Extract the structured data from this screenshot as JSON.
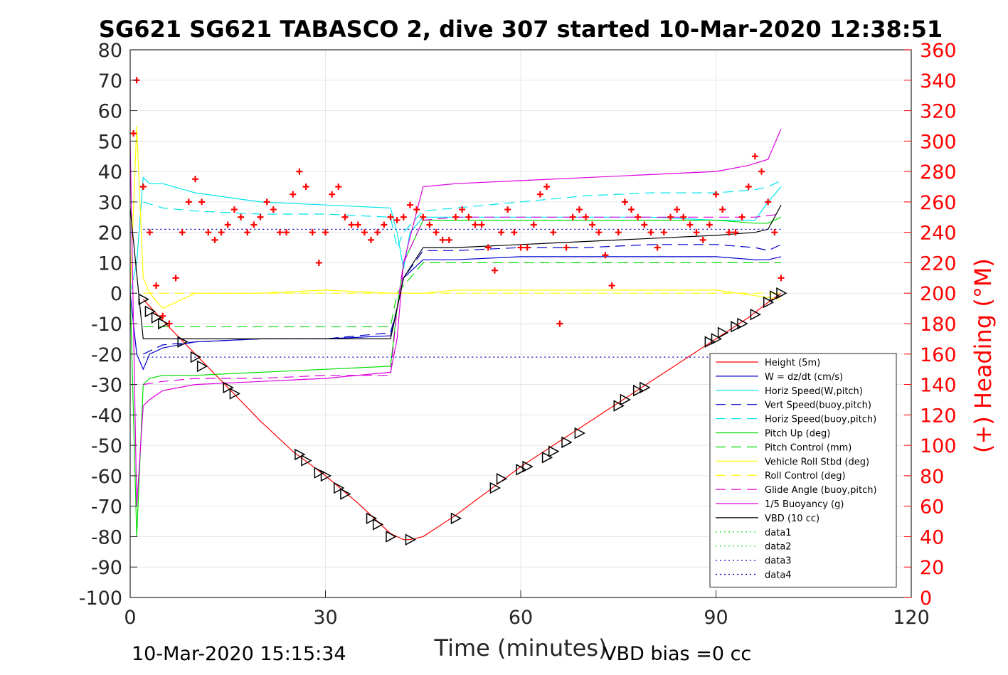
{
  "chart_data": {
    "type": "line",
    "title": "SG621 SG621 TABASCO 2, dive 307 started 10-Mar-2020 12:38:51",
    "xlabel": "Time (minutes)",
    "ylabel": "",
    "y2label": "(+) Heading (°M)",
    "xlim": [
      0,
      120
    ],
    "ylim": [
      -100,
      80
    ],
    "y2lim": [
      0,
      360
    ],
    "xticks": [
      "0",
      "30",
      "60",
      "90",
      "120"
    ],
    "yticks": [
      "80",
      "70",
      "60",
      "50",
      "40",
      "30",
      "20",
      "10",
      "0",
      "-10",
      "-20",
      "-30",
      "-40",
      "-50",
      "-60",
      "-70",
      "-80",
      "-90",
      "-100"
    ],
    "y2ticks": [
      "360",
      "340",
      "320",
      "300",
      "280",
      "260",
      "240",
      "220",
      "200",
      "180",
      "160",
      "140",
      "120",
      "100",
      "80",
      "60",
      "40",
      "20",
      "0"
    ],
    "grid": true,
    "legend_position": "lower-right",
    "footer_left": "10-Mar-2020 15:15:34",
    "footer_right": "VBD bias =0 cc",
    "series": [
      {
        "name": "Height (5m)",
        "color": "#ff0000",
        "style": "solid",
        "x": [
          2,
          5,
          10,
          15,
          20,
          25,
          30,
          35,
          38,
          40,
          42,
          43,
          45,
          50,
          55,
          60,
          65,
          70,
          75,
          80,
          85,
          90,
          95,
          98,
          100
        ],
        "y": [
          -2,
          -9,
          -20,
          -31,
          -42,
          -52,
          -60,
          -69,
          -75,
          -79,
          -81,
          -81,
          -80,
          -73,
          -65,
          -57,
          -50,
          -43,
          -36,
          -29,
          -22,
          -15,
          -8,
          -3,
          0
        ]
      },
      {
        "name": "W = dz/dt (cm/s)",
        "color": "#0000cd",
        "style": "solid",
        "x": [
          0,
          1,
          2,
          3,
          5,
          10,
          20,
          30,
          40,
          41,
          42,
          45,
          50,
          60,
          70,
          80,
          90,
          96,
          98,
          100
        ],
        "y": [
          0,
          -20,
          -25,
          -20,
          -18,
          -16,
          -15,
          -15,
          -14,
          -5,
          5,
          11,
          11,
          12,
          12,
          12,
          12,
          11,
          11,
          12
        ]
      },
      {
        "name": "Horiz Speed(W,pitch)",
        "color": "#00e5ee",
        "style": "solid",
        "x": [
          0,
          1,
          2,
          3,
          5,
          10,
          20,
          30,
          40,
          41,
          42,
          43,
          45,
          50,
          60,
          70,
          80,
          90,
          96,
          98,
          100
        ],
        "y": [
          0,
          10,
          38,
          36,
          36,
          33,
          30,
          29,
          28,
          20,
          8,
          20,
          25,
          25,
          25,
          25,
          25,
          24,
          24,
          30,
          35
        ]
      },
      {
        "name": "Vert Speed(buoy,pitch)",
        "color": "#0000cd",
        "style": "dashed",
        "x": [
          2,
          5,
          10,
          20,
          30,
          40,
          41,
          42,
          45,
          50,
          60,
          70,
          80,
          90,
          96,
          98,
          100
        ],
        "y": [
          -20,
          -17,
          -16,
          -15,
          -15,
          -13,
          -5,
          5,
          14,
          14,
          15,
          15,
          16,
          16,
          15,
          14,
          16
        ]
      },
      {
        "name": "Horiz Speed(buoy,pitch)",
        "color": "#00e5ee",
        "style": "dashed",
        "x": [
          2,
          5,
          10,
          20,
          30,
          40,
          41,
          42,
          45,
          50,
          60,
          70,
          80,
          90,
          96,
          98,
          100
        ],
        "y": [
          30,
          28,
          27,
          26,
          26,
          25,
          15,
          20,
          27,
          28,
          30,
          32,
          33,
          33,
          34,
          35,
          37
        ]
      },
      {
        "name": "Pitch Up (deg)",
        "color": "#00dd00",
        "style": "solid",
        "x": [
          0,
          1,
          2,
          3,
          5,
          10,
          20,
          30,
          40,
          41,
          42,
          45,
          50,
          60,
          70,
          80,
          90,
          96,
          98,
          100
        ],
        "y": [
          0,
          -80,
          -30,
          -28,
          -27,
          -27,
          -26,
          -25,
          -24,
          -5,
          10,
          24,
          24,
          24,
          24,
          24,
          24,
          23,
          23,
          25
        ]
      },
      {
        "name": "Pitch Control (mm)",
        "color": "#00dd00",
        "style": "dashed",
        "x": [
          2,
          40,
          41,
          45,
          100
        ],
        "y": [
          -11,
          -11,
          0,
          10,
          10
        ]
      },
      {
        "name": "Vehicle Roll Stbd (deg)",
        "color": "#ffff00",
        "style": "solid",
        "x": [
          0,
          1,
          2,
          3,
          5,
          10,
          20,
          30,
          40,
          45,
          50,
          60,
          70,
          80,
          90,
          100
        ],
        "y": [
          0,
          55,
          5,
          0,
          -5,
          0,
          0,
          1,
          0,
          0,
          1,
          1,
          1,
          1,
          1,
          -2
        ]
      },
      {
        "name": "Roll Control (deg)",
        "color": "#ffff00",
        "style": "dashed",
        "x": [
          2,
          100
        ],
        "y": [
          0,
          0
        ]
      },
      {
        "name": "Glide Angle (buoy,pitch)",
        "color": "#dd00dd",
        "style": "dashed",
        "x": [
          2,
          5,
          10,
          20,
          30,
          40,
          41,
          42,
          45,
          50,
          60,
          70,
          80,
          90,
          96,
          100
        ],
        "y": [
          -30,
          -29,
          -28,
          -28,
          -27,
          -27,
          -5,
          10,
          24,
          25,
          25,
          25,
          25,
          25,
          25,
          26
        ]
      },
      {
        "name": "1/5 Buoyancy (g)",
        "color": "#dd00dd",
        "style": "solid",
        "x": [
          0,
          1,
          2,
          3,
          5,
          10,
          20,
          30,
          40,
          41,
          42,
          45,
          50,
          60,
          70,
          80,
          90,
          95,
          98,
          100
        ],
        "y": [
          50,
          -70,
          -37,
          -35,
          -32,
          -30,
          -29,
          -28,
          -26,
          -15,
          10,
          35,
          36,
          37,
          38,
          39,
          40,
          42,
          44,
          54
        ]
      },
      {
        "name": "VBD (10 cc)",
        "color": "#000000",
        "style": "solid",
        "x": [
          0,
          2,
          10,
          20,
          30,
          40,
          41,
          42,
          45,
          50,
          60,
          70,
          80,
          90,
          96,
          98,
          100
        ],
        "y": [
          28,
          -15,
          -15,
          -15,
          -15,
          -15,
          -5,
          5,
          15,
          15,
          16,
          17,
          18,
          19,
          20,
          21,
          29
        ]
      },
      {
        "name": "data1",
        "color": "#00dd00",
        "style": "dotted",
        "x": [],
        "y": []
      },
      {
        "name": "data2",
        "color": "#00dd00",
        "style": "dotted",
        "x": [],
        "y": []
      },
      {
        "name": "data3",
        "color": "#0000cd",
        "style": "dotted",
        "x": [
          2,
          100
        ],
        "y": [
          21,
          21
        ]
      },
      {
        "name": "data4",
        "color": "#0000cd",
        "style": "dotted",
        "x": [
          2,
          100
        ],
        "y": [
          -21,
          -21
        ]
      }
    ],
    "heading": {
      "name": "Heading",
      "color": "#ff0000",
      "marker": "+",
      "x": [
        0.5,
        1,
        2,
        3,
        4,
        5,
        6,
        7,
        8,
        9,
        10,
        11,
        12,
        13,
        14,
        15,
        16,
        17,
        18,
        19,
        20,
        21,
        22,
        23,
        24,
        25,
        26,
        27,
        28,
        29,
        30,
        31,
        32,
        33,
        34,
        35,
        36,
        37,
        38,
        39,
        40,
        41,
        42,
        43,
        44,
        45,
        46,
        47,
        48,
        49,
        50,
        51,
        52,
        53,
        54,
        55,
        56,
        57,
        58,
        59,
        60,
        61,
        62,
        63,
        64,
        65,
        66,
        67,
        68,
        69,
        70,
        71,
        72,
        73,
        74,
        75,
        76,
        77,
        78,
        79,
        80,
        81,
        82,
        83,
        84,
        85,
        86,
        87,
        88,
        89,
        90,
        91,
        92,
        93,
        94,
        95,
        96,
        97,
        98,
        99,
        100
      ],
      "y": [
        305,
        340,
        270,
        240,
        205,
        185,
        180,
        210,
        240,
        260,
        275,
        260,
        240,
        235,
        240,
        245,
        255,
        250,
        240,
        245,
        250,
        260,
        255,
        240,
        240,
        265,
        280,
        270,
        240,
        220,
        240,
        265,
        270,
        250,
        245,
        245,
        240,
        235,
        240,
        245,
        250,
        248,
        250,
        258,
        255,
        250,
        245,
        240,
        235,
        235,
        250,
        255,
        250,
        245,
        245,
        230,
        215,
        240,
        255,
        240,
        230,
        230,
        245,
        265,
        270,
        240,
        180,
        230,
        250,
        255,
        250,
        245,
        240,
        225,
        205,
        240,
        260,
        255,
        250,
        245,
        240,
        230,
        240,
        250,
        255,
        250,
        245,
        240,
        235,
        245,
        265,
        255,
        240,
        240,
        250,
        270,
        290,
        280,
        260,
        240,
        210
      ]
    },
    "triangles": {
      "name": "triangles",
      "color": "#000000",
      "marker": "triangle-right",
      "x": [
        2,
        3,
        4,
        5,
        8,
        10,
        11,
        15,
        16,
        26,
        27,
        29,
        30,
        32,
        33,
        37,
        38,
        40,
        43,
        50,
        56,
        57,
        60,
        61,
        64,
        65,
        67,
        69,
        75,
        76,
        78,
        79,
        89,
        90,
        91,
        93,
        94,
        96,
        98,
        99,
        100
      ],
      "y": [
        -2,
        -6,
        -8,
        -10,
        -16,
        -21,
        -24,
        -31,
        -33,
        -53,
        -55,
        -59,
        -60,
        -64,
        -66,
        -74,
        -76,
        -80,
        -81,
        -74,
        -64,
        -61,
        -58,
        -57,
        -54,
        -52,
        -49,
        -46,
        -37,
        -35,
        -32,
        -31,
        -16,
        -15,
        -13,
        -11,
        -10,
        -7,
        -3,
        -1,
        0
      ]
    }
  }
}
